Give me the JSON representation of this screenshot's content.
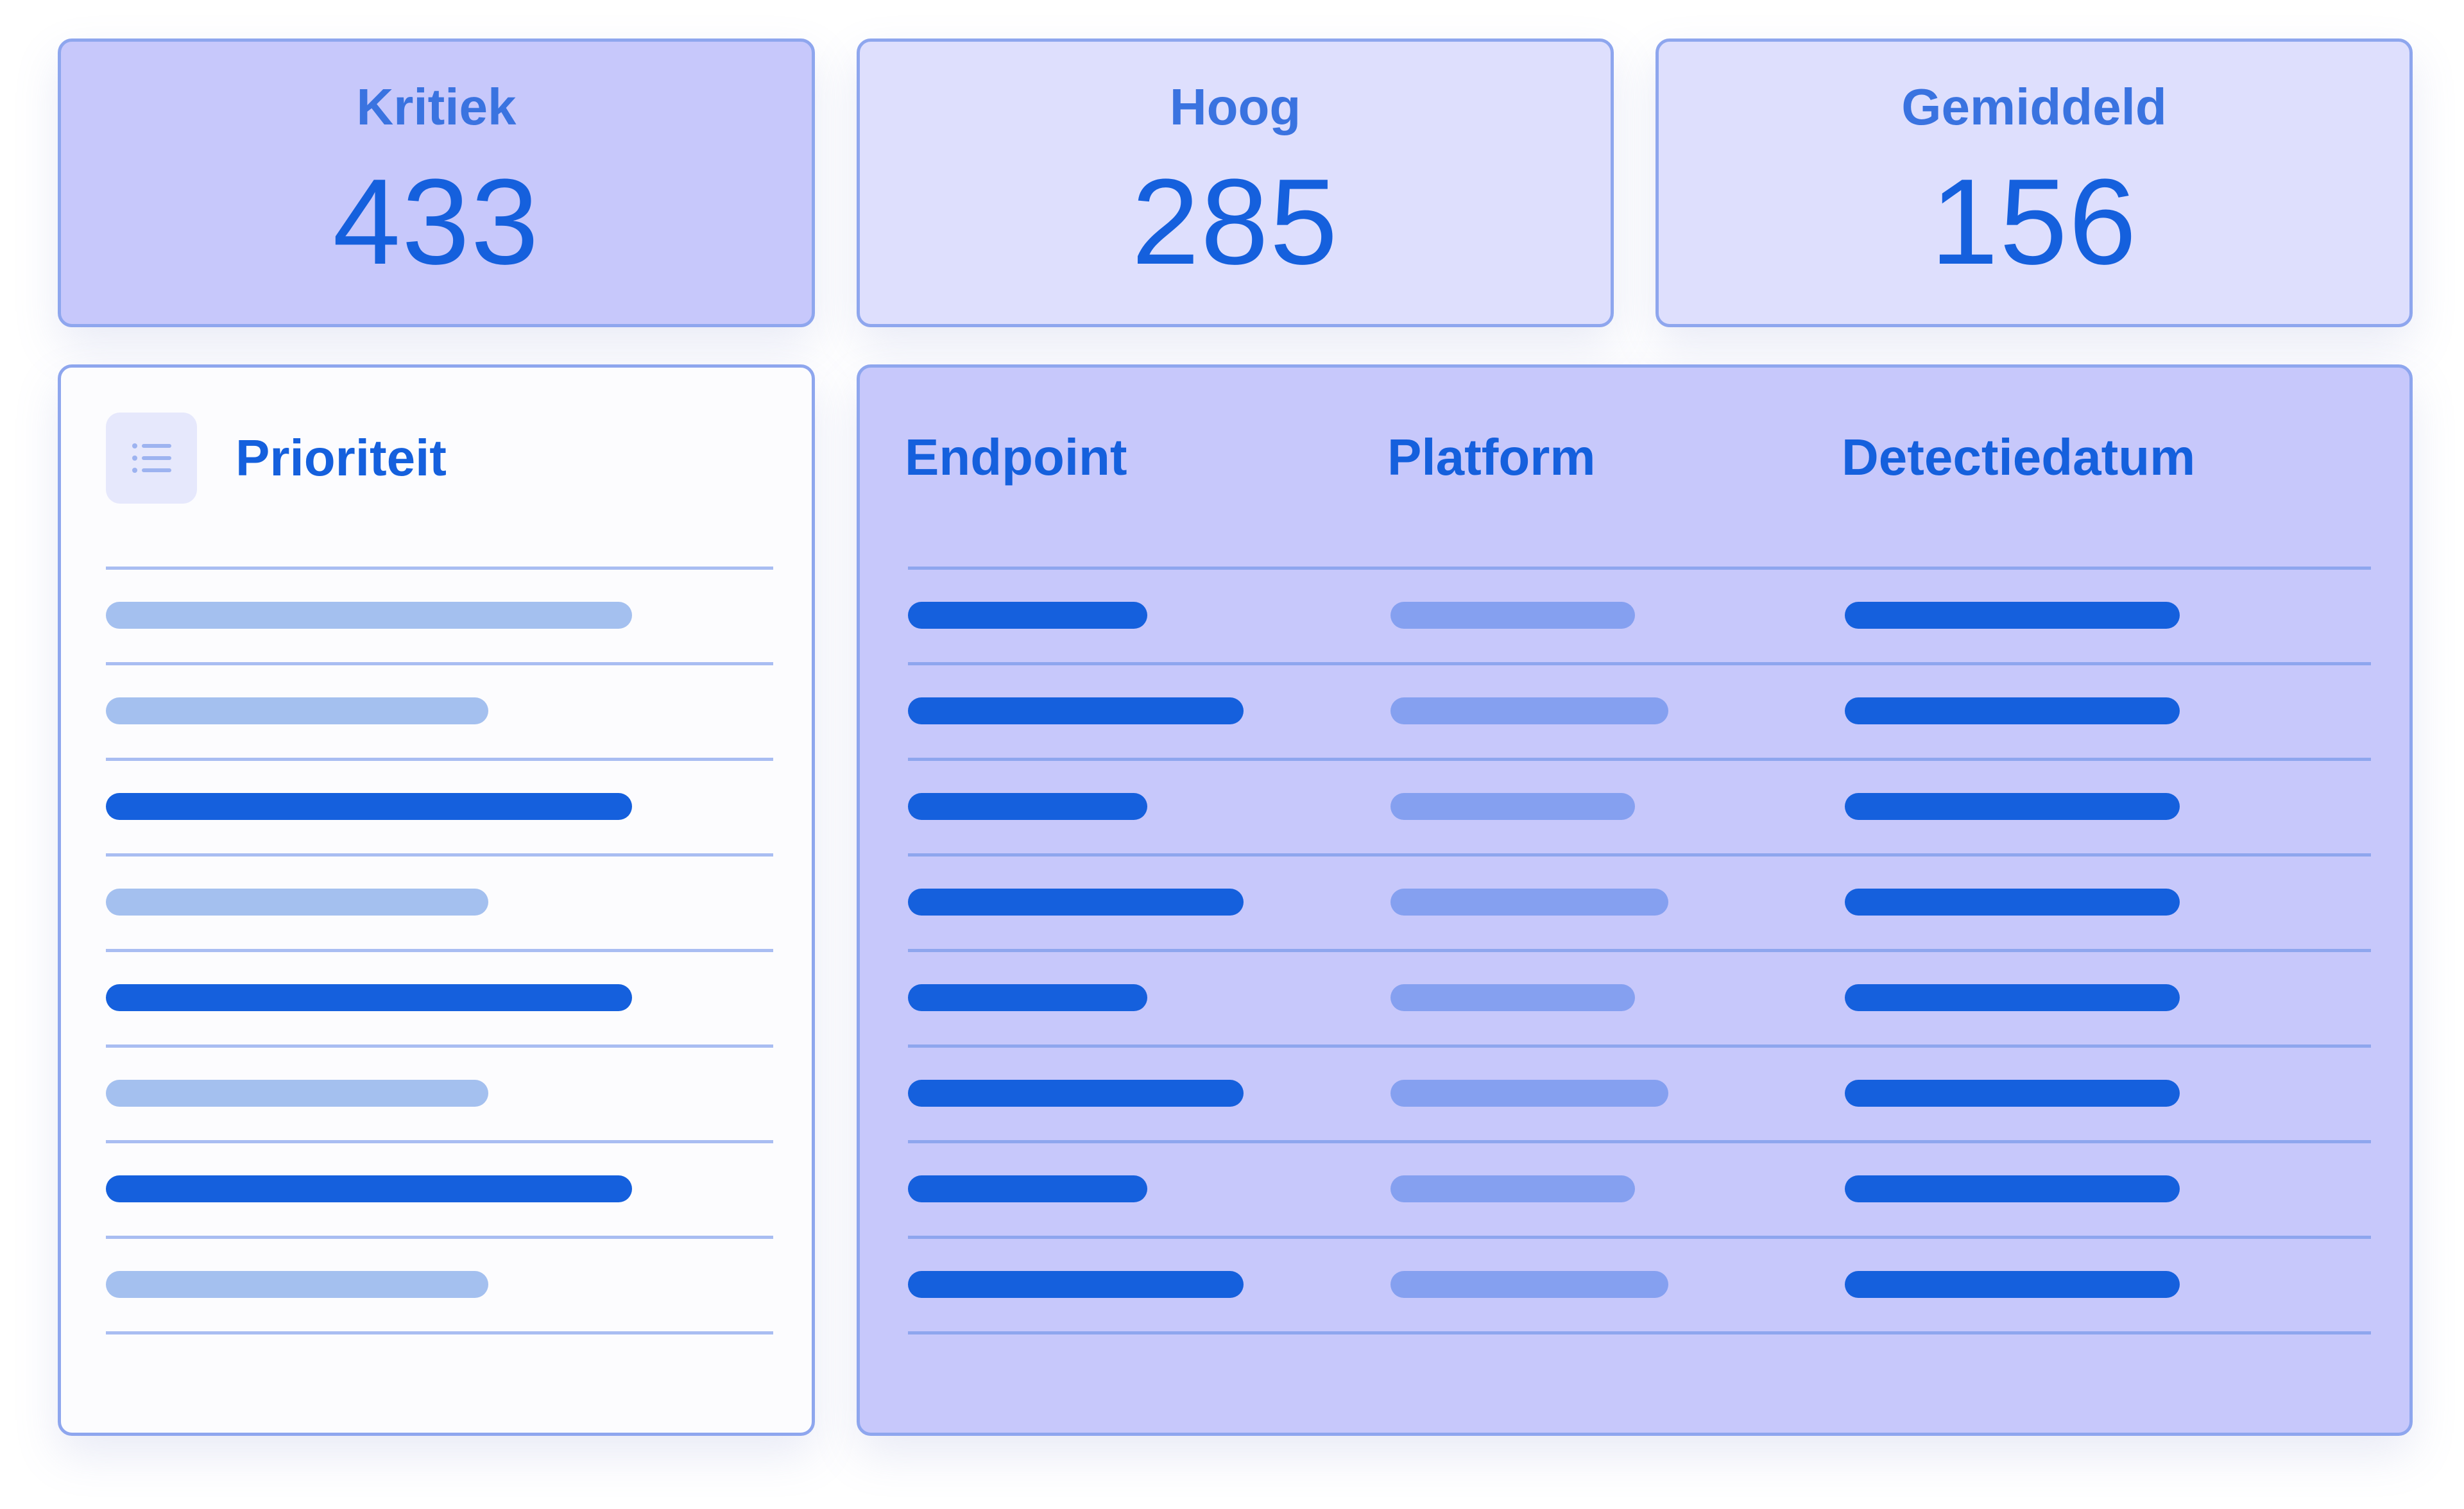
{
  "stats": [
    {
      "label": "Kritiek",
      "value": "433"
    },
    {
      "label": "Hoog",
      "value": "285"
    },
    {
      "label": "Gemiddeld",
      "value": "156"
    }
  ],
  "priority_panel": {
    "title": "Prioriteit",
    "icon": "list-icon",
    "row_count": 8
  },
  "table": {
    "columns": [
      "Endpoint",
      "Platform",
      "Detectiedatum"
    ],
    "row_count": 8
  },
  "colors": {
    "accent": "#1560dd",
    "bar_dark": "#1560dd",
    "bar_light": "#a4c0ef",
    "bar_mid": "#85a0f0",
    "panel_fill": "#c7c8fb",
    "panel_light": "#dedffd",
    "border": "#8ea6ee"
  }
}
